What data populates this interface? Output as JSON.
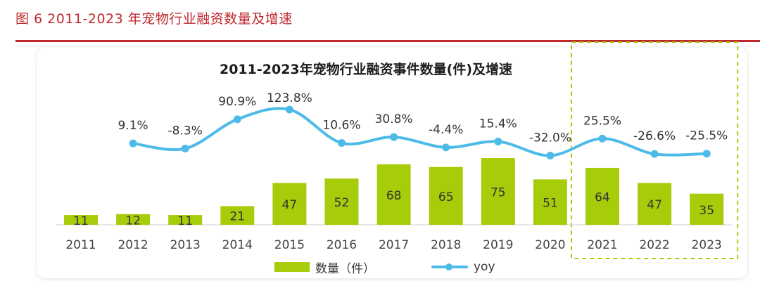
{
  "caption": "图 6 2011-2023 年宠物行业融资数量及增速",
  "chart_data": {
    "type": "bar",
    "title": "2011-2023年宠物行业融资事件数量(件)及增速",
    "categories": [
      "2011",
      "2012",
      "2013",
      "2014",
      "2015",
      "2016",
      "2017",
      "2018",
      "2019",
      "2020",
      "2021",
      "2022",
      "2023"
    ],
    "series": [
      {
        "name": "数量（件）",
        "type": "bar",
        "values": [
          11,
          12,
          11,
          21,
          47,
          52,
          68,
          65,
          75,
          51,
          64,
          47,
          35
        ],
        "value_labels": [
          "11",
          "12",
          "11",
          "21",
          "47",
          "52",
          "68",
          "65",
          "75",
          "51",
          "64",
          "47",
          "35"
        ],
        "color": "#a7cc0a"
      },
      {
        "name": "yoy",
        "type": "line",
        "values": [
          null,
          9.1,
          -8.3,
          90.9,
          123.8,
          10.6,
          30.8,
          -4.4,
          15.4,
          -32.0,
          25.5,
          -26.6,
          -25.5
        ],
        "value_labels": [
          "",
          "9.1%",
          "-8.3%",
          "90.9%",
          "123.8%",
          "10.6%",
          "30.8%",
          "-4.4%",
          "15.4%",
          "-32.0%",
          "25.5%",
          "-26.6%",
          "-25.5%"
        ],
        "color": "#4dbbe8",
        "smooth": true
      }
    ],
    "highlight_categories": [
      "2021",
      "2022",
      "2023"
    ],
    "highlight_color": "#a7cc0a",
    "legend_placement": "bottom-center",
    "grid": false
  }
}
